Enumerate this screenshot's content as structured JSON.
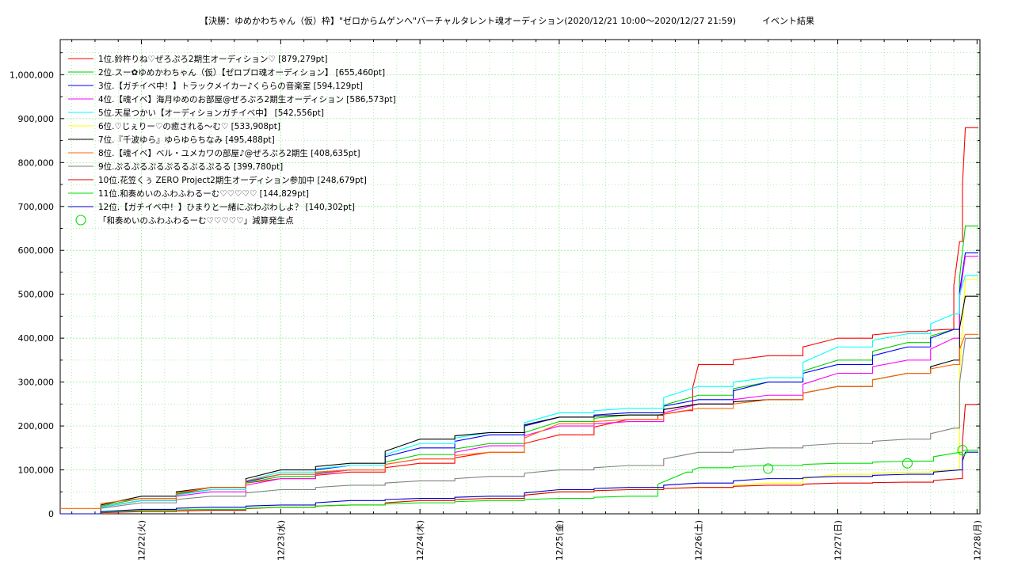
{
  "chart_data": {
    "type": "line",
    "title": "【決勝：ゆめかわちゃん（仮）枠】\"ゼロからムゲンへ\"バーチャルタレント魂オーディション(2020/12/21 10:00～2020/12/27 21:59)　　　イベント結果",
    "xlabel": "",
    "ylabel": "",
    "x_ticks": [
      "12/22(火)",
      "12/23(水)",
      "12/24(木)",
      "12/25(金)",
      "12/26(土)",
      "12/27(日)",
      "12/28(月)"
    ],
    "xlim": [
      "2020-12-21 10:00",
      "2020-12-28 00:30"
    ],
    "ylim": [
      0,
      1080000
    ],
    "y_ticks": [
      "0",
      "100,000",
      "200,000",
      "300,000",
      "400,000",
      "500,000",
      "600,000",
      "700,000",
      "800,000",
      "900,000",
      "1,000,000"
    ],
    "grid": true,
    "legend_position": "top-left",
    "series": [
      {
        "name": "1位.鈴杵りね♡ぜろぷろ2期生オーディション♡ [879,279pt]",
        "color": "#ff0000",
        "x": [
          "2020-12-21 10:00",
          "2020-12-22 00:00",
          "2020-12-22 12:00",
          "2020-12-23 00:00",
          "2020-12-23 12:00",
          "2020-12-24 00:00",
          "2020-12-24 12:00",
          "2020-12-25 00:00",
          "2020-12-25 12:00",
          "2020-12-25 22:00",
          "2020-12-26 00:00",
          "2020-12-26 12:00",
          "2020-12-27 00:00",
          "2020-12-27 12:00",
          "2020-12-27 19:00",
          "2020-12-27 21:00",
          "2020-12-27 21:59"
        ],
        "y": [
          0,
          30000,
          60000,
          80000,
          95000,
          115000,
          140000,
          180000,
          215000,
          235000,
          340000,
          360000,
          400000,
          415000,
          420000,
          620000,
          879279
        ]
      },
      {
        "name": "2位.スー✿ゆめかわちゃん（仮）【ゼロプロ魂オーディション】 [655,460pt]",
        "color": "#00cc00",
        "x": [
          "2020-12-21 10:00",
          "2020-12-22 00:00",
          "2020-12-22 12:00",
          "2020-12-23 00:00",
          "2020-12-23 12:00",
          "2020-12-24 00:00",
          "2020-12-24 12:00",
          "2020-12-25 00:00",
          "2020-12-25 12:00",
          "2020-12-26 00:00",
          "2020-12-26 12:00",
          "2020-12-27 00:00",
          "2020-12-27 12:00",
          "2020-12-27 20:00",
          "2020-12-27 21:59"
        ],
        "y": [
          0,
          35000,
          55000,
          85000,
          100000,
          135000,
          160000,
          210000,
          225000,
          270000,
          300000,
          350000,
          390000,
          420000,
          655460
        ]
      },
      {
        "name": "3位.【ガチイベ中！】トラックメイカー♪くららの音楽室 [594,129pt]",
        "color": "#0000ff",
        "x": [
          "2020-12-21 10:00",
          "2020-12-22 00:00",
          "2020-12-22 12:00",
          "2020-12-23 00:00",
          "2020-12-23 12:00",
          "2020-12-24 00:00",
          "2020-12-24 12:00",
          "2020-12-25 00:00",
          "2020-12-25 12:00",
          "2020-12-26 00:00",
          "2020-12-26 12:00",
          "2020-12-27 00:00",
          "2020-12-27 12:00",
          "2020-12-27 20:00",
          "2020-12-27 21:59"
        ],
        "y": [
          0,
          30000,
          55000,
          90000,
          110000,
          150000,
          180000,
          220000,
          230000,
          260000,
          300000,
          340000,
          380000,
          420000,
          594129
        ]
      },
      {
        "name": "4位.【魂イベ】海月ゆめのお部屋@ぜろぷろ2期生オーディション [586,573pt]",
        "color": "#ff00ff",
        "x": [
          "2020-12-21 10:00",
          "2020-12-22 00:00",
          "2020-12-22 12:00",
          "2020-12-23 00:00",
          "2020-12-23 12:00",
          "2020-12-24 00:00",
          "2020-12-24 12:00",
          "2020-12-25 00:00",
          "2020-12-25 12:00",
          "2020-12-26 00:00",
          "2020-12-26 12:00",
          "2020-12-27 00:00",
          "2020-12-27 12:00",
          "2020-12-27 20:00",
          "2020-12-27 21:59"
        ],
        "y": [
          0,
          30000,
          50000,
          80000,
          100000,
          125000,
          155000,
          200000,
          210000,
          250000,
          270000,
          320000,
          350000,
          400000,
          586573
        ]
      },
      {
        "name": "5位.天星つかい【オーディションガチイベ中】 [542,556pt]",
        "color": "#00ffff",
        "x": [
          "2020-12-21 10:00",
          "2020-12-22 00:00",
          "2020-12-22 12:00",
          "2020-12-23 00:00",
          "2020-12-23 12:00",
          "2020-12-24 00:00",
          "2020-12-24 12:00",
          "2020-12-25 00:00",
          "2020-12-25 12:00",
          "2020-12-26 00:00",
          "2020-12-26 12:00",
          "2020-12-27 00:00",
          "2020-12-27 12:00",
          "2020-12-27 20:00",
          "2020-12-27 21:59"
        ],
        "y": [
          0,
          30000,
          55000,
          95000,
          110000,
          160000,
          185000,
          230000,
          240000,
          290000,
          310000,
          380000,
          410000,
          455000,
          542556
        ]
      },
      {
        "name": "6位.♡じぇりー♡の癒される〜む♡ [533,908pt]",
        "color": "#ffff00",
        "x": [
          "2020-12-21 10:00",
          "2020-12-22 00:00",
          "2020-12-22 12:00",
          "2020-12-23 00:00",
          "2020-12-23 12:00",
          "2020-12-24 00:00",
          "2020-12-24 12:00",
          "2020-12-25 00:00",
          "2020-12-25 12:00",
          "2020-12-26 00:00",
          "2020-12-26 12:00",
          "2020-12-27 00:00",
          "2020-12-27 12:00",
          "2020-12-27 20:00",
          "2020-12-27 21:59"
        ],
        "y": [
          0,
          5000,
          8000,
          15000,
          20000,
          30000,
          35000,
          50000,
          55000,
          60000,
          70000,
          90000,
          95000,
          100000,
          533908
        ]
      },
      {
        "name": "7位.『千波ゆら』ゆらゆらちなみ [495,488pt]",
        "color": "#000000",
        "x": [
          "2020-12-21 10:00",
          "2020-12-22 00:00",
          "2020-12-22 12:00",
          "2020-12-23 00:00",
          "2020-12-23 12:00",
          "2020-12-24 00:00",
          "2020-12-24 12:00",
          "2020-12-25 00:00",
          "2020-12-25 12:00",
          "2020-12-26 00:00",
          "2020-12-26 12:00",
          "2020-12-27 00:00",
          "2020-12-27 12:00",
          "2020-12-27 20:00",
          "2020-12-27 21:59"
        ],
        "y": [
          0,
          40000,
          60000,
          100000,
          115000,
          170000,
          185000,
          220000,
          225000,
          250000,
          260000,
          290000,
          320000,
          350000,
          495488
        ]
      },
      {
        "name": "8位.【魂イベ】ベル・ユメカワの部屋♪@ぜろぷろ2期生 [408,635pt]",
        "color": "#ff6600",
        "x": [
          "2020-12-21 10:00",
          "2020-12-22 00:00",
          "2020-12-22 12:00",
          "2020-12-23 00:00",
          "2020-12-23 12:00",
          "2020-12-24 00:00",
          "2020-12-24 12:00",
          "2020-12-25 00:00",
          "2020-12-25 12:00",
          "2020-12-26 00:00",
          "2020-12-26 12:00",
          "2020-12-27 00:00",
          "2020-12-27 12:00",
          "2020-12-27 20:00",
          "2020-12-27 21:59"
        ],
        "y": [
          12000,
          35000,
          60000,
          90000,
          100000,
          125000,
          140000,
          205000,
          215000,
          240000,
          260000,
          290000,
          320000,
          340000,
          408635
        ]
      },
      {
        "name": "9位.ぷるぷるぷるぷるるぷるぷるる [399,780pt]",
        "color": "#808080",
        "x": [
          "2020-12-21 10:00",
          "2020-12-22 00:00",
          "2020-12-22 12:00",
          "2020-12-23 00:00",
          "2020-12-23 12:00",
          "2020-12-24 00:00",
          "2020-12-24 12:00",
          "2020-12-25 00:00",
          "2020-12-25 12:00",
          "2020-12-26 00:00",
          "2020-12-26 12:00",
          "2020-12-27 00:00",
          "2020-12-27 12:00",
          "2020-12-27 20:00",
          "2020-12-27 21:59"
        ],
        "y": [
          0,
          25000,
          40000,
          55000,
          65000,
          75000,
          85000,
          100000,
          110000,
          140000,
          150000,
          160000,
          170000,
          195000,
          399780
        ]
      },
      {
        "name": "10位.花笠くぅ ZERO Project2期生オーディション参加中 [248,679pt]",
        "color": "#e00000",
        "x": [
          "2020-12-21 10:00",
          "2020-12-22 00:00",
          "2020-12-22 12:00",
          "2020-12-23 00:00",
          "2020-12-23 12:00",
          "2020-12-24 00:00",
          "2020-12-24 12:00",
          "2020-12-25 00:00",
          "2020-12-25 12:00",
          "2020-12-26 00:00",
          "2020-12-26 12:00",
          "2020-12-27 00:00",
          "2020-12-27 12:00",
          "2020-12-27 21:00",
          "2020-12-27 21:59"
        ],
        "y": [
          0,
          5000,
          8000,
          15000,
          20000,
          30000,
          35000,
          50000,
          55000,
          60000,
          65000,
          70000,
          72000,
          80000,
          248679
        ]
      },
      {
        "name": "11位.和奏めいのふわふわるーむ♡♡♡♡♡ [144,829pt]",
        "color": "#00e000",
        "x": [
          "2020-12-21 10:00",
          "2020-12-22 00:00",
          "2020-12-22 12:00",
          "2020-12-23 00:00",
          "2020-12-23 12:00",
          "2020-12-24 00:00",
          "2020-12-24 12:00",
          "2020-12-25 00:00",
          "2020-12-25 12:00",
          "2020-12-25 22:00",
          "2020-12-26 00:00",
          "2020-12-26 12:00",
          "2020-12-27 00:00",
          "2020-12-27 12:00",
          "2020-12-27 21:00",
          "2020-12-27 21:59"
        ],
        "y": [
          0,
          8000,
          10000,
          15000,
          20000,
          25000,
          30000,
          35000,
          40000,
          95000,
          105000,
          110000,
          115000,
          120000,
          140000,
          144829
        ]
      },
      {
        "name": "12位.【ガチイベ中！】ひまりと一緒にぷわぷわしよ？ [140,302pt]",
        "color": "#0000cc",
        "x": [
          "2020-12-21 10:00",
          "2020-12-22 00:00",
          "2020-12-22 12:00",
          "2020-12-23 00:00",
          "2020-12-23 12:00",
          "2020-12-24 00:00",
          "2020-12-24 12:00",
          "2020-12-25 00:00",
          "2020-12-25 12:00",
          "2020-12-26 00:00",
          "2020-12-26 12:00",
          "2020-12-27 00:00",
          "2020-12-27 12:00",
          "2020-12-27 21:00",
          "2020-12-27 21:59"
        ],
        "y": [
          0,
          10000,
          15000,
          20000,
          30000,
          35000,
          40000,
          55000,
          60000,
          70000,
          80000,
          85000,
          90000,
          100000,
          140302
        ]
      }
    ],
    "markers": {
      "label": "「和奏めいのふわふわるーむ♡♡♡♡♡」減算発生点",
      "color": "#00e000",
      "points": [
        {
          "x": "2020-12-26 12:00",
          "y": 103000
        },
        {
          "x": "2020-12-27 12:00",
          "y": 115000
        },
        {
          "x": "2020-12-27 21:30",
          "y": 145000
        }
      ]
    }
  }
}
